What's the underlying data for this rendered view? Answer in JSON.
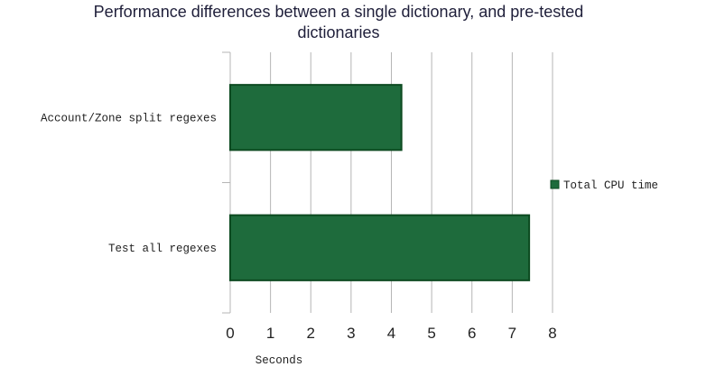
{
  "chart_data": {
    "type": "bar",
    "orientation": "horizontal",
    "title_lines": [
      "Performance differences between a single dictionary, and pre-tested",
      "dictionaries"
    ],
    "categories": [
      "Account/Zone split regexes",
      "Test all regexes"
    ],
    "series": [
      {
        "name": "Total CPU time",
        "values": [
          4.25,
          7.42
        ],
        "color": "#1e6b3c",
        "stroke": "#0c4a20"
      }
    ],
    "xlabel": "Seconds",
    "ylabel": "",
    "xlim": [
      0,
      8
    ],
    "xticks": [
      "0",
      "1",
      "2",
      "3",
      "4",
      "5",
      "6",
      "7",
      "8"
    ],
    "grid": true,
    "legend_position": "right"
  }
}
